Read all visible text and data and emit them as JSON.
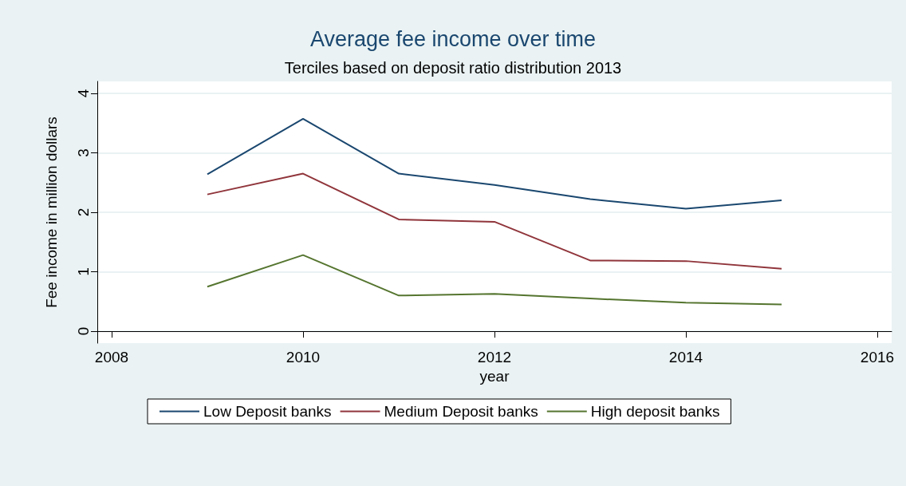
{
  "chart_data": {
    "type": "line",
    "title": "Average fee income over time",
    "subtitle": "Terciles based on deposit ratio distribution 2013",
    "xlabel": "year",
    "ylabel": "Fee income in million dollars",
    "x": [
      2009,
      2010,
      2011,
      2012,
      2013,
      2014,
      2015
    ],
    "series": [
      {
        "name": "Low Deposit banks",
        "color": "#1a476f",
        "values": [
          2.64,
          3.57,
          2.65,
          2.46,
          2.22,
          2.06,
          2.2
        ]
      },
      {
        "name": "Medium Deposit banks",
        "color": "#90353b",
        "values": [
          2.3,
          2.65,
          1.88,
          1.84,
          1.19,
          1.18,
          1.05
        ]
      },
      {
        "name": "High deposit banks",
        "color": "#55752f",
        "values": [
          0.75,
          1.28,
          0.6,
          0.63,
          0.55,
          0.48,
          0.45
        ]
      }
    ],
    "xlim": [
      2007.85,
      2016.15
    ],
    "xticks": [
      2008,
      2010,
      2012,
      2014,
      2016
    ],
    "ylim": [
      -0.2,
      4.2
    ],
    "yticks": [
      0,
      1,
      2,
      3,
      4
    ],
    "grid": "y",
    "legend": "bottom",
    "marker": "none",
    "line_style": "solid"
  }
}
